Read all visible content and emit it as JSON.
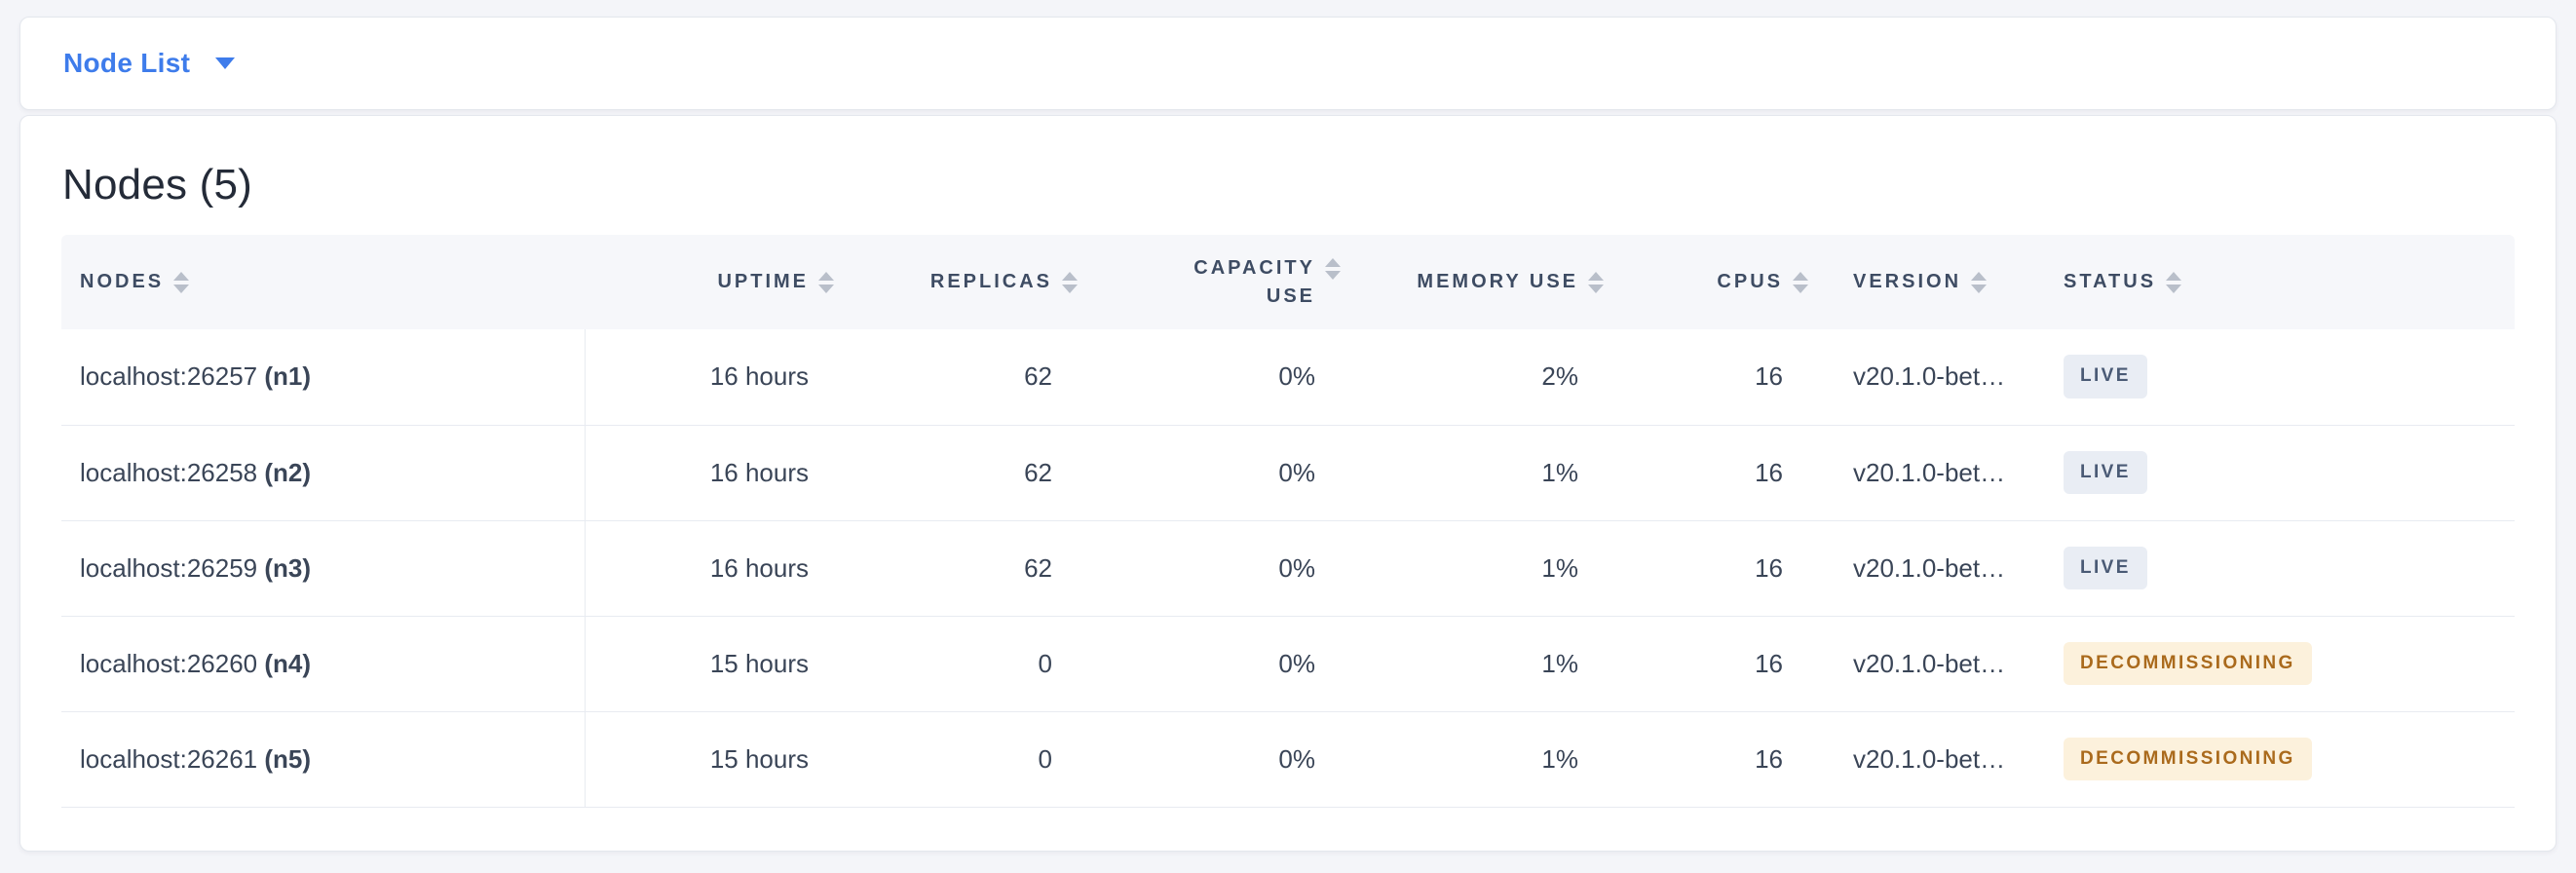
{
  "view_selector": {
    "label": "Node List"
  },
  "panel": {
    "title": "Nodes (5)"
  },
  "table": {
    "columns": [
      {
        "label": "NODES"
      },
      {
        "label": "UPTIME"
      },
      {
        "label": "REPLICAS"
      },
      {
        "label": "CAPACITY USE"
      },
      {
        "label": "MEMORY USE"
      },
      {
        "label": "CPUS"
      },
      {
        "label": "VERSION"
      },
      {
        "label": "STATUS"
      }
    ],
    "rows": [
      {
        "node": "localhost:26257",
        "node_id": "(n1)",
        "uptime": "16 hours",
        "replicas": "62",
        "capacity_use": "0%",
        "memory_use": "2%",
        "cpus": "16",
        "version": "v20.1.0-bet…",
        "status": "LIVE"
      },
      {
        "node": "localhost:26258",
        "node_id": "(n2)",
        "uptime": "16 hours",
        "replicas": "62",
        "capacity_use": "0%",
        "memory_use": "1%",
        "cpus": "16",
        "version": "v20.1.0-bet…",
        "status": "LIVE"
      },
      {
        "node": "localhost:26259",
        "node_id": "(n3)",
        "uptime": "16 hours",
        "replicas": "62",
        "capacity_use": "0%",
        "memory_use": "1%",
        "cpus": "16",
        "version": "v20.1.0-bet…",
        "status": "LIVE"
      },
      {
        "node": "localhost:26260",
        "node_id": "(n4)",
        "uptime": "15 hours",
        "replicas": "0",
        "capacity_use": "0%",
        "memory_use": "1%",
        "cpus": "16",
        "version": "v20.1.0-bet…",
        "status": "DECOMMISSIONING"
      },
      {
        "node": "localhost:26261",
        "node_id": "(n5)",
        "uptime": "15 hours",
        "replicas": "0",
        "capacity_use": "0%",
        "memory_use": "1%",
        "cpus": "16",
        "version": "v20.1.0-bet…",
        "status": "DECOMMISSIONING"
      }
    ]
  },
  "colors": {
    "accent_blue": "#3e7ceb",
    "page_background": "#f4f5f9",
    "header_text": "#3e4c63",
    "body_text": "#3a4557",
    "badge_live_bg": "#e9edf4",
    "badge_live_text": "#4a5a75",
    "badge_decommissioning_bg": "#fcf1dc",
    "badge_decommissioning_text": "#aa6a1c"
  }
}
